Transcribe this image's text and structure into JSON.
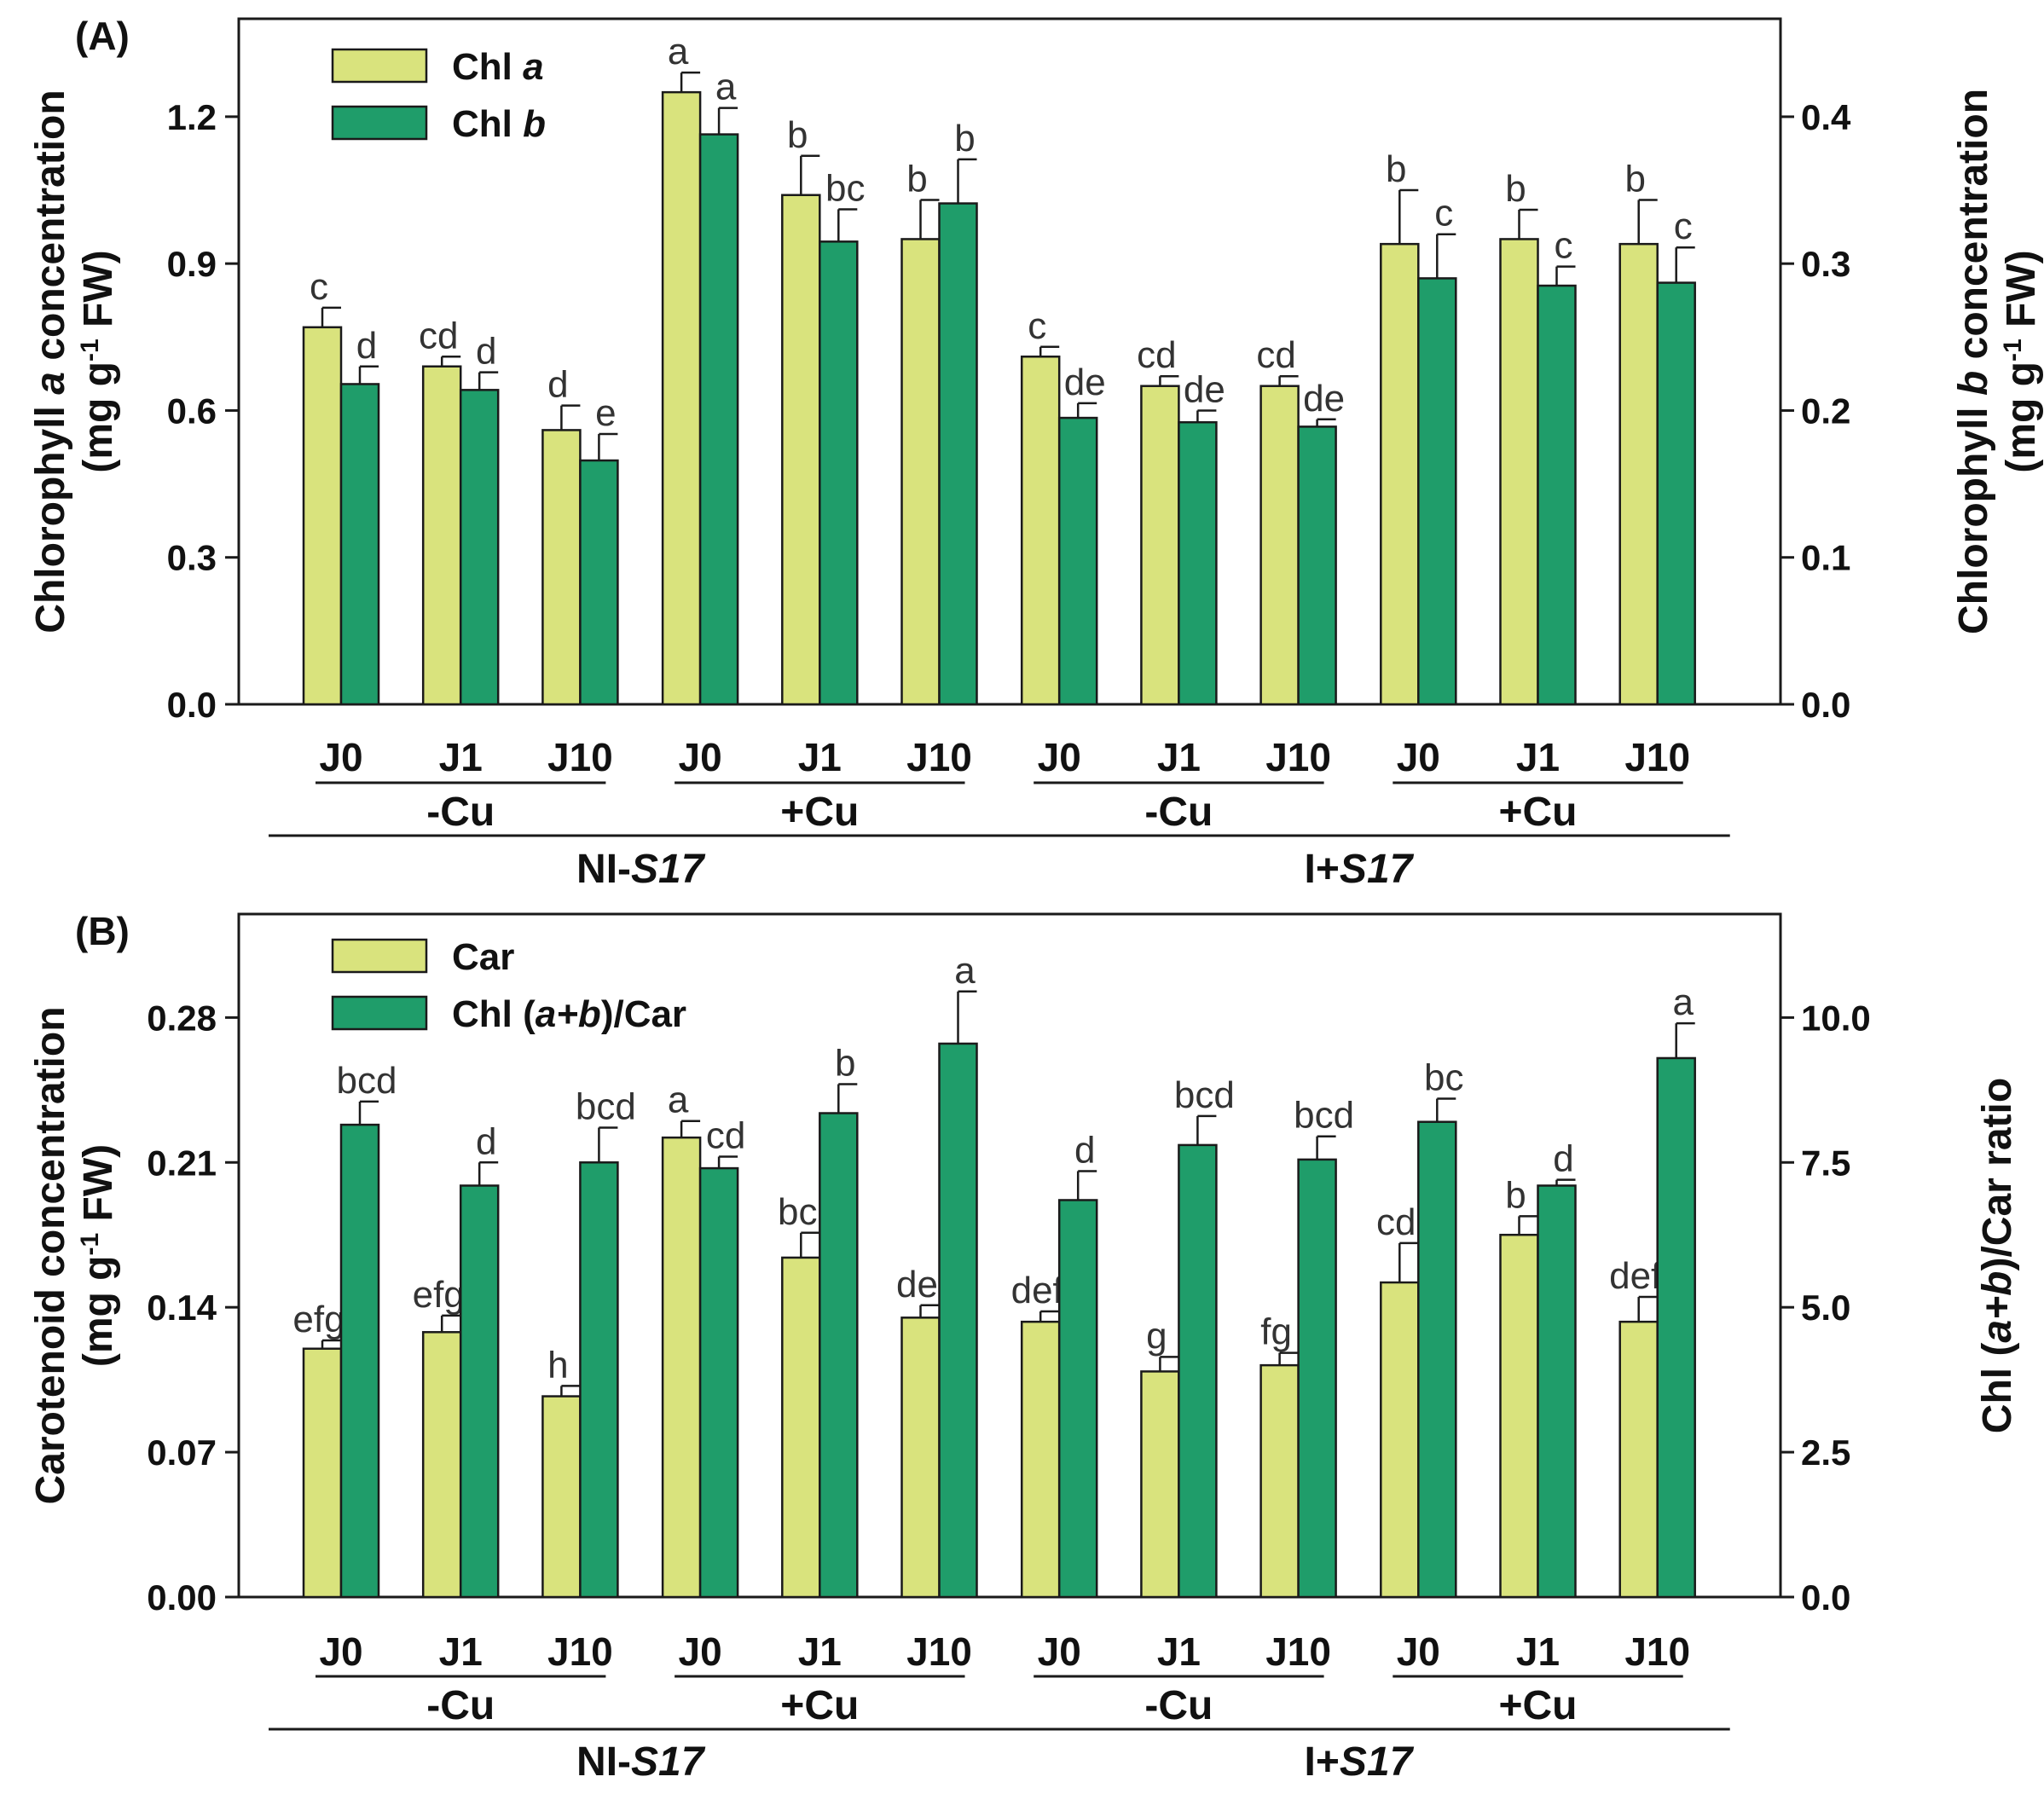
{
  "colors": {
    "light": "#d9e37d",
    "dark": "#1f9d6a",
    "stroke": "#1a1a1a"
  },
  "categories": [
    "J0",
    "J1",
    "J10",
    "J0",
    "J1",
    "J10",
    "J0",
    "J1",
    "J10",
    "J0",
    "J1",
    "J10"
  ],
  "cu_groups": [
    {
      "label": "-Cu",
      "from": 0,
      "to": 2
    },
    {
      "label": "+Cu",
      "from": 3,
      "to": 5
    },
    {
      "label": "-Cu",
      "from": 6,
      "to": 8
    },
    {
      "label": "+Cu",
      "from": 9,
      "to": 11
    }
  ],
  "strain_groups": [
    {
      "pre": "NI-",
      "em": "S17",
      "post": "",
      "from": 0,
      "to": 5
    },
    {
      "pre": "I+",
      "em": "S17",
      "post": "",
      "from": 6,
      "to": 11
    }
  ],
  "chart_data": [
    {
      "type": "bar",
      "panel_label": "(A)",
      "ylabel_left": {
        "line1_pre": "Chlorophyll ",
        "line1_em": "a",
        "line1_post": " concentration",
        "line2_pre": "(mg g",
        "line2_sup": "-1",
        "line2_post": " FW)"
      },
      "ylabel_right": {
        "line1_pre": "Chlorophyll ",
        "line1_em": "b",
        "line1_post": " concentration",
        "line2_pre": "(mg g",
        "line2_sup": "-1",
        "line2_post": " FW)"
      },
      "ylim_left": [
        0,
        1.4
      ],
      "yticks_left": [
        "0.0",
        "0.3",
        "0.6",
        "0.9",
        "1.2"
      ],
      "ytick_values_left": [
        0,
        0.3,
        0.6,
        0.9,
        1.2
      ],
      "ylim_right": [
        0,
        0.4667
      ],
      "yticks_right": [
        "0.0",
        "0.1",
        "0.2",
        "0.3",
        "0.4"
      ],
      "ytick_values_right": [
        0,
        0.1,
        0.2,
        0.3,
        0.4
      ],
      "legend": [
        {
          "pre": "Chl ",
          "em": "a",
          "post": ""
        },
        {
          "pre": "Chl ",
          "em": "b",
          "post": ""
        }
      ],
      "series": [
        {
          "name": "Chl a",
          "axis": "left",
          "values": [
            0.77,
            0.69,
            0.56,
            1.25,
            1.04,
            0.95,
            0.71,
            0.65,
            0.65,
            0.94,
            0.95,
            0.94
          ],
          "errors": [
            0.04,
            0.02,
            0.05,
            0.04,
            0.08,
            0.08,
            0.02,
            0.02,
            0.02,
            0.11,
            0.06,
            0.09
          ],
          "letters": [
            "c",
            "cd",
            "d",
            "a",
            "b",
            "b",
            "c",
            "cd",
            "cd",
            "b",
            "b",
            "b"
          ]
        },
        {
          "name": "Chl b",
          "axis": "right",
          "values": [
            0.218,
            0.214,
            0.166,
            0.388,
            0.315,
            0.341,
            0.195,
            0.192,
            0.189,
            0.29,
            0.285,
            0.287
          ],
          "errors": [
            0.012,
            0.012,
            0.018,
            0.018,
            0.022,
            0.03,
            0.01,
            0.008,
            0.005,
            0.03,
            0.013,
            0.024
          ],
          "letters": [
            "d",
            "d",
            "e",
            "a",
            "bc",
            "b",
            "de",
            "de",
            "de",
            "c",
            "c",
            "c"
          ]
        }
      ]
    },
    {
      "type": "bar",
      "panel_label": "(B)",
      "ylabel_left": {
        "line1_pre": "Carotenoid concentration",
        "line1_em": "",
        "line1_post": "",
        "line2_pre": "(mg g",
        "line2_sup": "-1",
        "line2_post": " FW)"
      },
      "ylabel_right": {
        "line1_pre": "Chl (",
        "line1_em": "a+b",
        "line1_post": ")/Car ratio",
        "line2_pre": "",
        "line2_sup": "",
        "line2_post": ""
      },
      "ylim_left": [
        0,
        0.33
      ],
      "yticks_left": [
        "0.00",
        "0.07",
        "0.14",
        "0.21",
        "0.28"
      ],
      "ytick_values_left": [
        0,
        0.07,
        0.14,
        0.21,
        0.28
      ],
      "ylim_right": [
        0,
        11.786
      ],
      "yticks_right": [
        "0.0",
        "2.5",
        "5.0",
        "7.5",
        "10.0"
      ],
      "ytick_values_right": [
        0,
        2.5,
        5.0,
        7.5,
        10.0
      ],
      "legend": [
        {
          "pre": "Car",
          "em": "",
          "post": ""
        },
        {
          "pre": "Chl (",
          "em": "a+b",
          "post": ")/Car"
        }
      ],
      "series": [
        {
          "name": "Car",
          "axis": "left",
          "values": [
            0.12,
            0.128,
            0.097,
            0.222,
            0.164,
            0.135,
            0.133,
            0.109,
            0.112,
            0.152,
            0.175,
            0.133
          ],
          "errors": [
            0.004,
            0.008,
            0.005,
            0.008,
            0.012,
            0.006,
            0.005,
            0.007,
            0.006,
            0.019,
            0.009,
            0.012
          ],
          "letters": [
            "efg",
            "efg",
            "h",
            "a",
            "bc",
            "de",
            "def",
            "g",
            "fg",
            "cd",
            "b",
            "def"
          ]
        },
        {
          "name": "Chl (a+b)/Car",
          "axis": "right",
          "values": [
            8.15,
            7.1,
            7.5,
            7.4,
            8.35,
            9.55,
            6.85,
            7.8,
            7.55,
            8.2,
            7.1,
            9.3
          ],
          "errors": [
            0.4,
            0.4,
            0.6,
            0.2,
            0.5,
            0.9,
            0.5,
            0.5,
            0.4,
            0.4,
            0.1,
            0.6
          ],
          "letters": [
            "bcd",
            "d",
            "bcd",
            "cd",
            "b",
            "a",
            "d",
            "bcd",
            "bcd",
            "bc",
            "d",
            "a"
          ]
        }
      ]
    }
  ]
}
